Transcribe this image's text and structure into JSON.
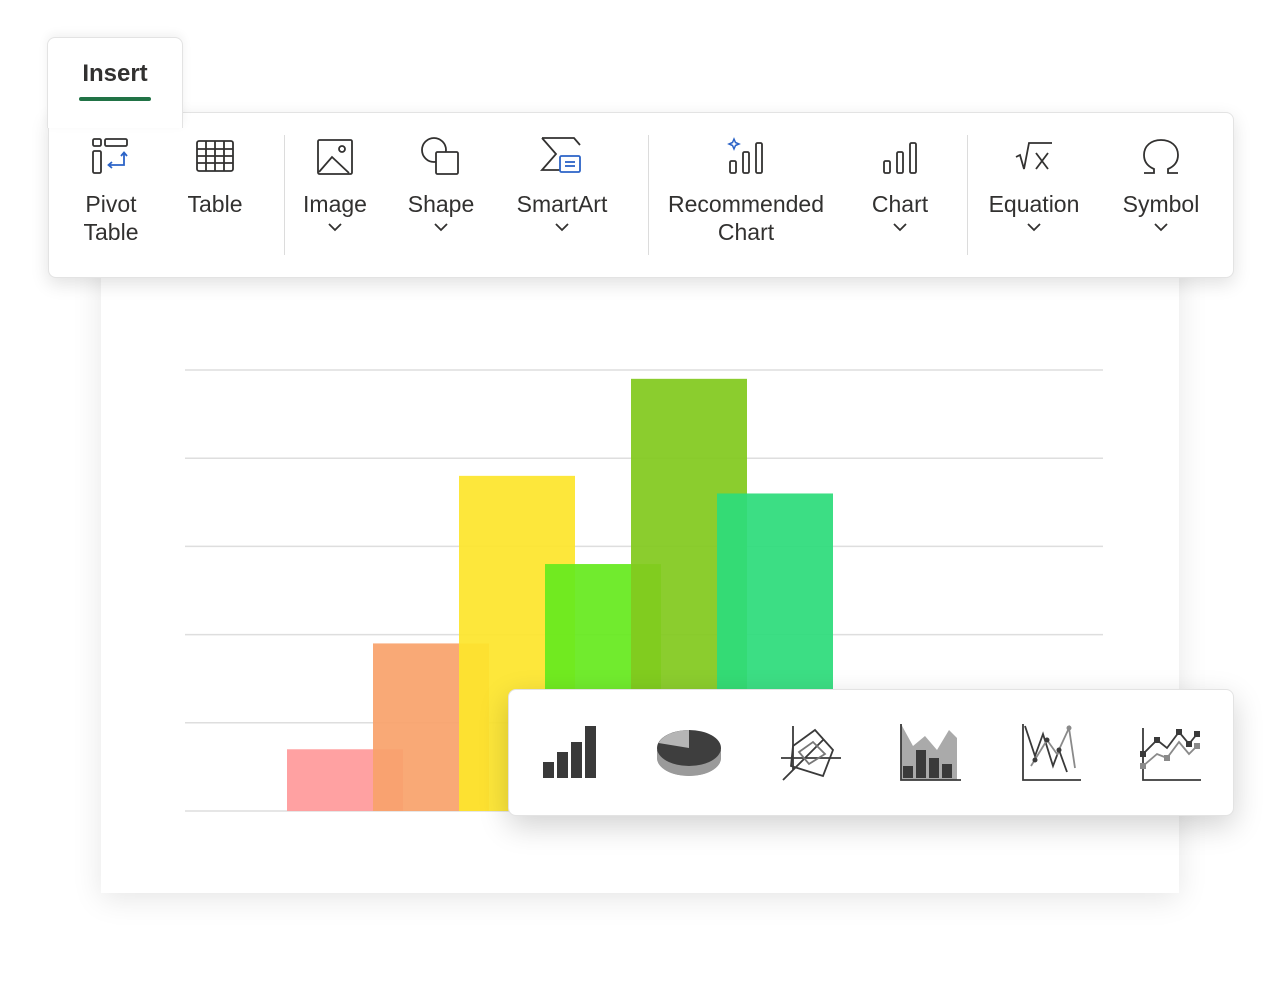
{
  "ribbon": {
    "active_tab": "Insert",
    "items": [
      {
        "label": "Pivot\nTable",
        "icon": "pivot-table-icon",
        "dropdown": false
      },
      {
        "label": "Table",
        "icon": "table-icon",
        "dropdown": false
      },
      {
        "label": "Image",
        "icon": "image-icon",
        "dropdown": true
      },
      {
        "label": "Shape",
        "icon": "shape-icon",
        "dropdown": true
      },
      {
        "label": "SmartArt",
        "icon": "smartart-icon",
        "dropdown": true
      },
      {
        "label": "Recommended\nChart",
        "icon": "recommended-chart-icon",
        "dropdown": false
      },
      {
        "label": "Chart",
        "icon": "chart-icon",
        "dropdown": true
      },
      {
        "label": "Equation",
        "icon": "equation-icon",
        "dropdown": true
      },
      {
        "label": "Symbol",
        "icon": "symbol-icon",
        "dropdown": true
      }
    ]
  },
  "chart_picker": {
    "types": [
      "column-chart-icon",
      "pie-chart-icon",
      "radar-chart-icon",
      "area-chart-icon",
      "line-chart-icon",
      "line-markers-chart-icon"
    ]
  },
  "chart_data": {
    "type": "bar",
    "categories": [
      "",
      "",
      "",
      "",
      "",
      ""
    ],
    "values": [
      0.7,
      1.9,
      3.8,
      2.8,
      4.9,
      3.6
    ],
    "colors": [
      "#ff9a9b",
      "#f9a26c",
      "#fde52c",
      "#66ea1e",
      "#82c91e",
      "#2ddc7b"
    ],
    "ylim": [
      0,
      5
    ],
    "grid": true,
    "legend": "none",
    "title": "",
    "xlabel": "",
    "ylabel": ""
  },
  "colors": {
    "accent": "#217346",
    "smartart_accent": "#2b63c7"
  }
}
